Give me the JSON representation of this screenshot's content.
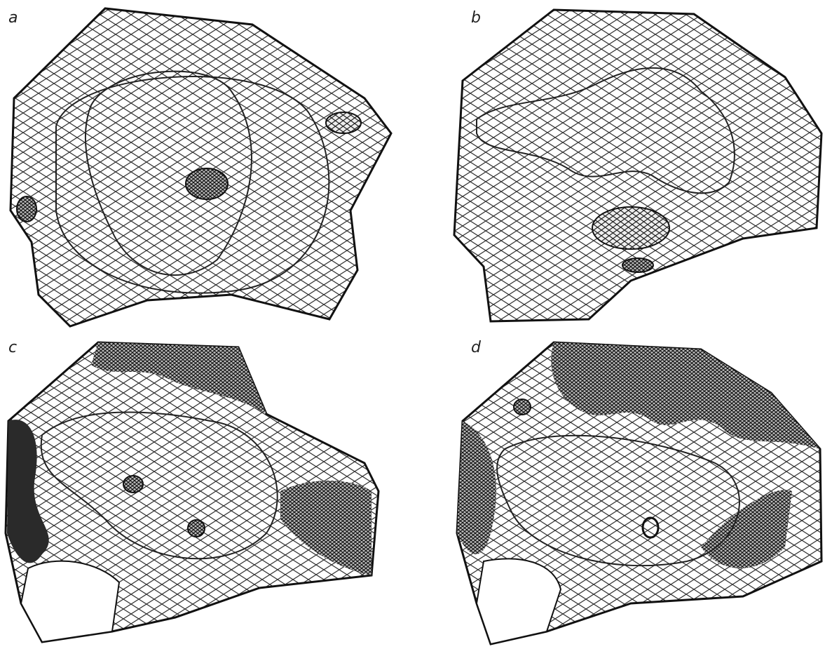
{
  "panels": [
    {
      "label": "a"
    },
    {
      "label": "b"
    },
    {
      "label": "c"
    },
    {
      "label": "d"
    }
  ]
}
